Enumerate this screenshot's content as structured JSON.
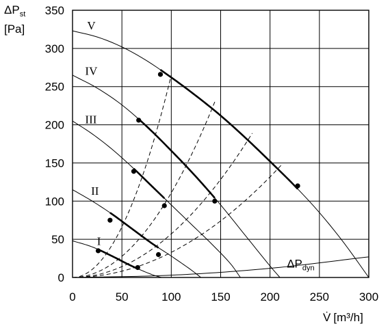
{
  "chart_data": {
    "type": "line",
    "ylabel_symbol": "ΔP",
    "ylabel_sub": "st",
    "ylabel_unit": "[Pa]",
    "xlabel_symbol": "V̇",
    "xlabel_unit": "[m³/h]",
    "xlim": [
      0,
      300
    ],
    "ylim": [
      0,
      350
    ],
    "xticks": [
      0,
      50,
      100,
      150,
      200,
      250,
      300
    ],
    "yticks": [
      0,
      50,
      100,
      150,
      200,
      250,
      300,
      350
    ],
    "grid": true,
    "fan_curves": [
      {
        "name": "I",
        "x": [
          0,
          20,
          40,
          60,
          80,
          90
        ],
        "y": [
          48,
          40,
          28,
          15,
          4,
          0
        ]
      },
      {
        "name": "II",
        "x": [
          0,
          20,
          40,
          60,
          80,
          100,
          120,
          130
        ],
        "y": [
          115,
          100,
          83,
          64,
          45,
          28,
          10,
          0
        ]
      },
      {
        "name": "III",
        "x": [
          0,
          20,
          40,
          60,
          80,
          100,
          120,
          140,
          160,
          170
        ],
        "y": [
          205,
          188,
          168,
          145,
          120,
          95,
          70,
          45,
          18,
          0
        ]
      },
      {
        "name": "IV",
        "x": [
          0,
          25,
          50,
          75,
          100,
          125,
          150,
          175,
          200,
          210
        ],
        "y": [
          265,
          248,
          226,
          198,
          166,
          132,
          95,
          55,
          15,
          0
        ]
      },
      {
        "name": "V",
        "x": [
          0,
          25,
          50,
          75,
          100,
          125,
          150,
          175,
          200,
          225,
          250,
          275,
          300
        ],
        "y": [
          323,
          315,
          302,
          284,
          262,
          238,
          212,
          183,
          152,
          120,
          85,
          45,
          0
        ]
      }
    ],
    "operating_range_points": [
      {
        "curve": "I",
        "points": [
          [
            26,
            35
          ],
          [
            66,
            13
          ]
        ]
      },
      {
        "curve": "II",
        "points": [
          [
            38,
            75
          ],
          [
            87,
            30
          ]
        ]
      },
      {
        "curve": "III",
        "points": [
          [
            62,
            139
          ],
          [
            93,
            94
          ]
        ]
      },
      {
        "curve": "IV",
        "points": [
          [
            67,
            206
          ],
          [
            144,
            100
          ]
        ]
      },
      {
        "curve": "V",
        "points": [
          [
            89,
            266
          ],
          [
            228,
            120
          ]
        ]
      }
    ],
    "system_curves": [
      {
        "x_end": 100,
        "y_end": 265
      },
      {
        "x_end": 145,
        "y_end": 233
      },
      {
        "x_end": 182,
        "y_end": 189
      },
      {
        "x_end": 212,
        "y_end": 148
      }
    ],
    "dynamic_pressure": {
      "label": "ΔP",
      "label_sub": "dyn",
      "x": [
        0,
        100,
        200,
        300
      ],
      "y": [
        0,
        3,
        12,
        27
      ]
    },
    "annotations": [
      "I",
      "II",
      "III",
      "IV",
      "V",
      "ΔPdyn"
    ]
  }
}
